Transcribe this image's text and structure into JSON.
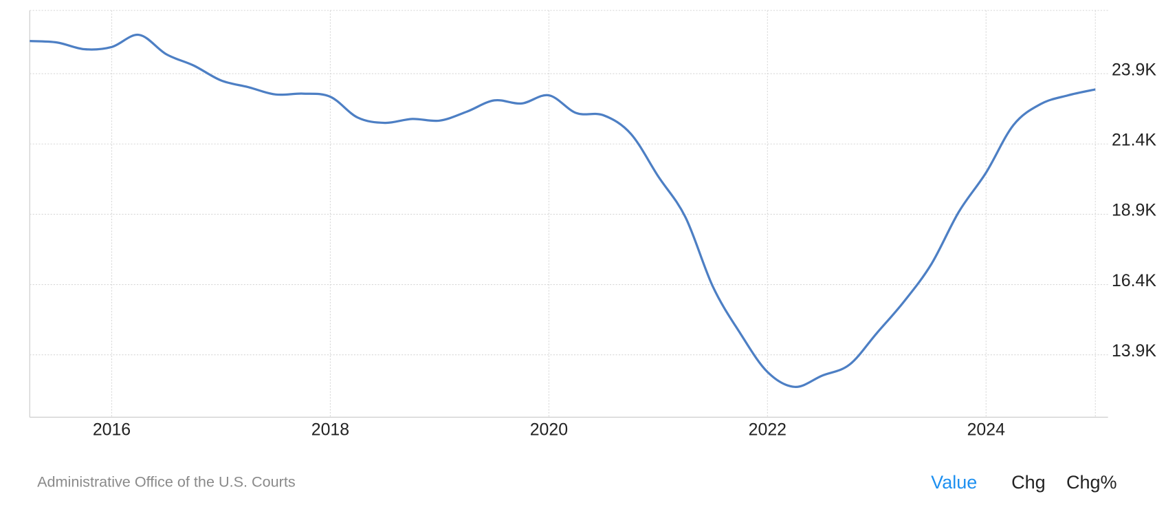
{
  "chart_data": {
    "type": "line",
    "x": [
      2015.25,
      2015.5,
      2015.75,
      2016.0,
      2016.25,
      2016.5,
      2016.75,
      2017.0,
      2017.25,
      2017.5,
      2017.75,
      2018.0,
      2018.25,
      2018.5,
      2018.75,
      2019.0,
      2019.25,
      2019.5,
      2019.75,
      2020.0,
      2020.25,
      2020.5,
      2020.75,
      2021.0,
      2021.25,
      2021.5,
      2021.75,
      2022.0,
      2022.25,
      2022.5,
      2022.75,
      2023.0,
      2023.25,
      2023.5,
      2023.75,
      2024.0,
      2024.25,
      2024.5,
      2024.75,
      2025.0
    ],
    "series": [
      {
        "color": "#4d7fc4",
        "values": [
          25060,
          25010,
          24770,
          24850,
          25280,
          24590,
          24190,
          23660,
          23420,
          23160,
          23190,
          23080,
          22340,
          22150,
          22290,
          22230,
          22550,
          22950,
          22840,
          23130,
          22500,
          22420,
          21760,
          20250,
          18790,
          16330,
          14670,
          13290,
          12760,
          13160,
          13550,
          14670,
          15800,
          17130,
          18980,
          20380,
          22070,
          22820,
          23130,
          23340
        ]
      }
    ],
    "xlim": [
      2015.25,
      2025.0
    ],
    "xticks": [
      2016,
      2018,
      2020,
      2022,
      2024
    ],
    "ylim": [
      11680,
      26150
    ],
    "yticks": [
      {
        "value": 13900,
        "label": "13.9K"
      },
      {
        "value": 16400,
        "label": "16.4K"
      },
      {
        "value": 18900,
        "label": "18.9K"
      },
      {
        "value": 21400,
        "label": "21.4K"
      },
      {
        "value": 23900,
        "label": "23.9K"
      }
    ],
    "grid": true,
    "source": "Administrative Office of the U.S. Courts",
    "tabs": [
      "Value",
      "Chg",
      "Chg%"
    ]
  }
}
